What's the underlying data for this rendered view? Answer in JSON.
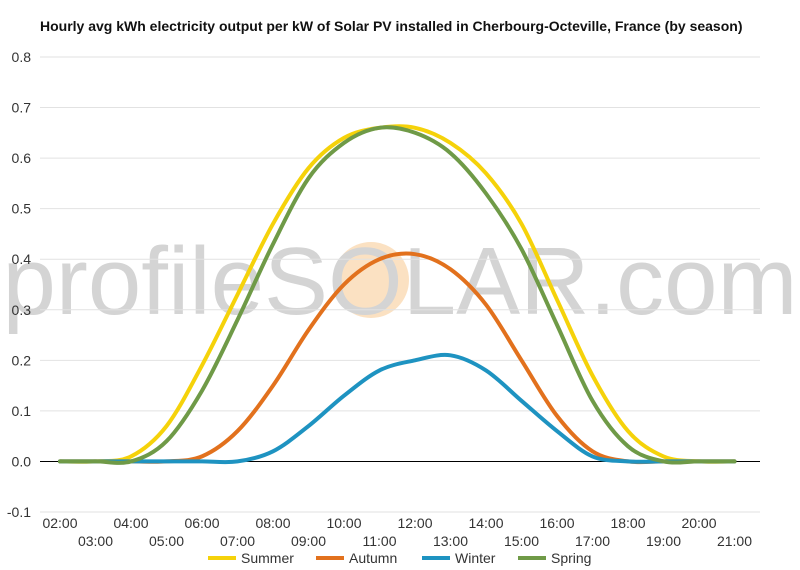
{
  "chart_data": {
    "type": "line",
    "title": "Hourly avg kWh electricity output per kW of Solar PV installed in Cherbourg-Octeville, France (by season)",
    "watermark": "profileSOLAR.com",
    "xlabel": "",
    "ylabel": "",
    "x": [
      "02:00",
      "03:00",
      "04:00",
      "05:00",
      "06:00",
      "07:00",
      "08:00",
      "09:00",
      "10:00",
      "11:00",
      "12:00",
      "13:00",
      "14:00",
      "15:00",
      "16:00",
      "17:00",
      "18:00",
      "19:00",
      "20:00",
      "21:00"
    ],
    "x_tick_labels_upper": [
      "02:00",
      "04:00",
      "06:00",
      "08:00",
      "10:00",
      "12:00",
      "14:00",
      "16:00",
      "18:00",
      "20:00"
    ],
    "x_tick_labels_lower": [
      "03:00",
      "05:00",
      "07:00",
      "09:00",
      "11:00",
      "13:00",
      "15:00",
      "17:00",
      "19:00",
      "21:00"
    ],
    "y_ticks": [
      "0.8",
      "0.7",
      "0.6",
      "0.5",
      "0.4",
      "0.3",
      "0.2",
      "0.1",
      "0.0",
      "-0.1"
    ],
    "ylim": [
      -0.1,
      0.8
    ],
    "grid": true,
    "legend_position": "bottom",
    "series": [
      {
        "name": "Summer",
        "color": "#f5d20a",
        "values": [
          0.0,
          0.0,
          0.01,
          0.07,
          0.19,
          0.33,
          0.47,
          0.58,
          0.64,
          0.66,
          0.66,
          0.63,
          0.57,
          0.47,
          0.32,
          0.17,
          0.06,
          0.01,
          0.0,
          0.0
        ]
      },
      {
        "name": "Autumn",
        "color": "#e2711d",
        "values": [
          0.0,
          0.0,
          0.0,
          0.0,
          0.01,
          0.06,
          0.15,
          0.26,
          0.35,
          0.4,
          0.41,
          0.38,
          0.31,
          0.2,
          0.09,
          0.02,
          0.0,
          0.0,
          0.0,
          0.0
        ]
      },
      {
        "name": "Winter",
        "color": "#1e93c1",
        "values": [
          0.0,
          0.0,
          0.0,
          0.0,
          0.0,
          0.0,
          0.02,
          0.07,
          0.13,
          0.18,
          0.2,
          0.21,
          0.18,
          0.12,
          0.06,
          0.01,
          0.0,
          0.0,
          0.0,
          0.0
        ]
      },
      {
        "name": "Spring",
        "color": "#6f9a47",
        "values": [
          0.0,
          0.0,
          0.0,
          0.04,
          0.14,
          0.28,
          0.43,
          0.56,
          0.63,
          0.66,
          0.65,
          0.61,
          0.53,
          0.42,
          0.27,
          0.12,
          0.03,
          0.0,
          0.0,
          0.0
        ]
      }
    ]
  }
}
